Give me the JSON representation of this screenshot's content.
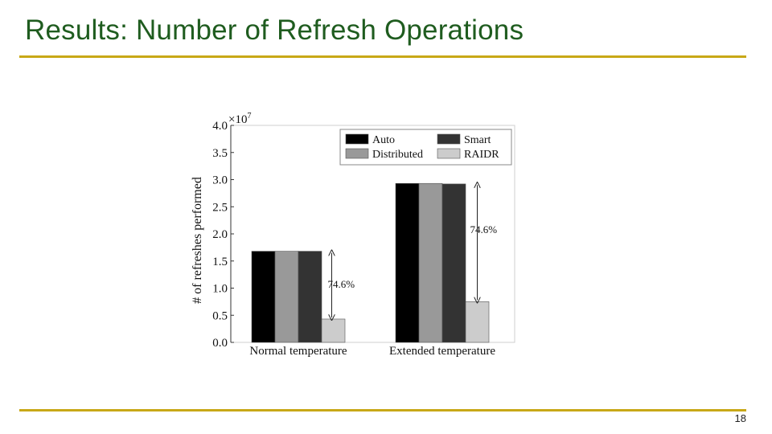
{
  "slide": {
    "title": "Results: Number of Refresh Operations",
    "page_number": "18",
    "accent_color": "#c8a817",
    "title_color": "#1f5c1f"
  },
  "chart_data": {
    "type": "bar",
    "title": "",
    "ylabel": "# of refreshes performed",
    "xlabel": "",
    "y_multiplier_label": "×10",
    "y_multiplier_exponent": "7",
    "ylim": [
      0,
      4.0
    ],
    "yticks": [
      "0.0",
      "0.5",
      "1.0",
      "1.5",
      "2.0",
      "2.5",
      "3.0",
      "3.5",
      "4.0"
    ],
    "categories": [
      "Normal temperature",
      "Extended temperature"
    ],
    "series": [
      {
        "name": "Auto",
        "color": "#000000",
        "values": [
          1.68,
          2.93
        ]
      },
      {
        "name": "Distributed",
        "color": "#999999",
        "values": [
          1.68,
          2.93
        ]
      },
      {
        "name": "Smart",
        "color": "#333333",
        "values": [
          1.68,
          2.92
        ]
      },
      {
        "name": "RAIDR",
        "color": "#cccccc",
        "values": [
          0.43,
          0.75
        ]
      }
    ],
    "legend_position": "top-right",
    "annotations": [
      {
        "text": "74.6%",
        "category": "Normal temperature",
        "from": 1.68,
        "to": 0.43
      },
      {
        "text": "74.6%",
        "category": "Extended temperature",
        "from": 2.93,
        "to": 0.75
      }
    ]
  }
}
